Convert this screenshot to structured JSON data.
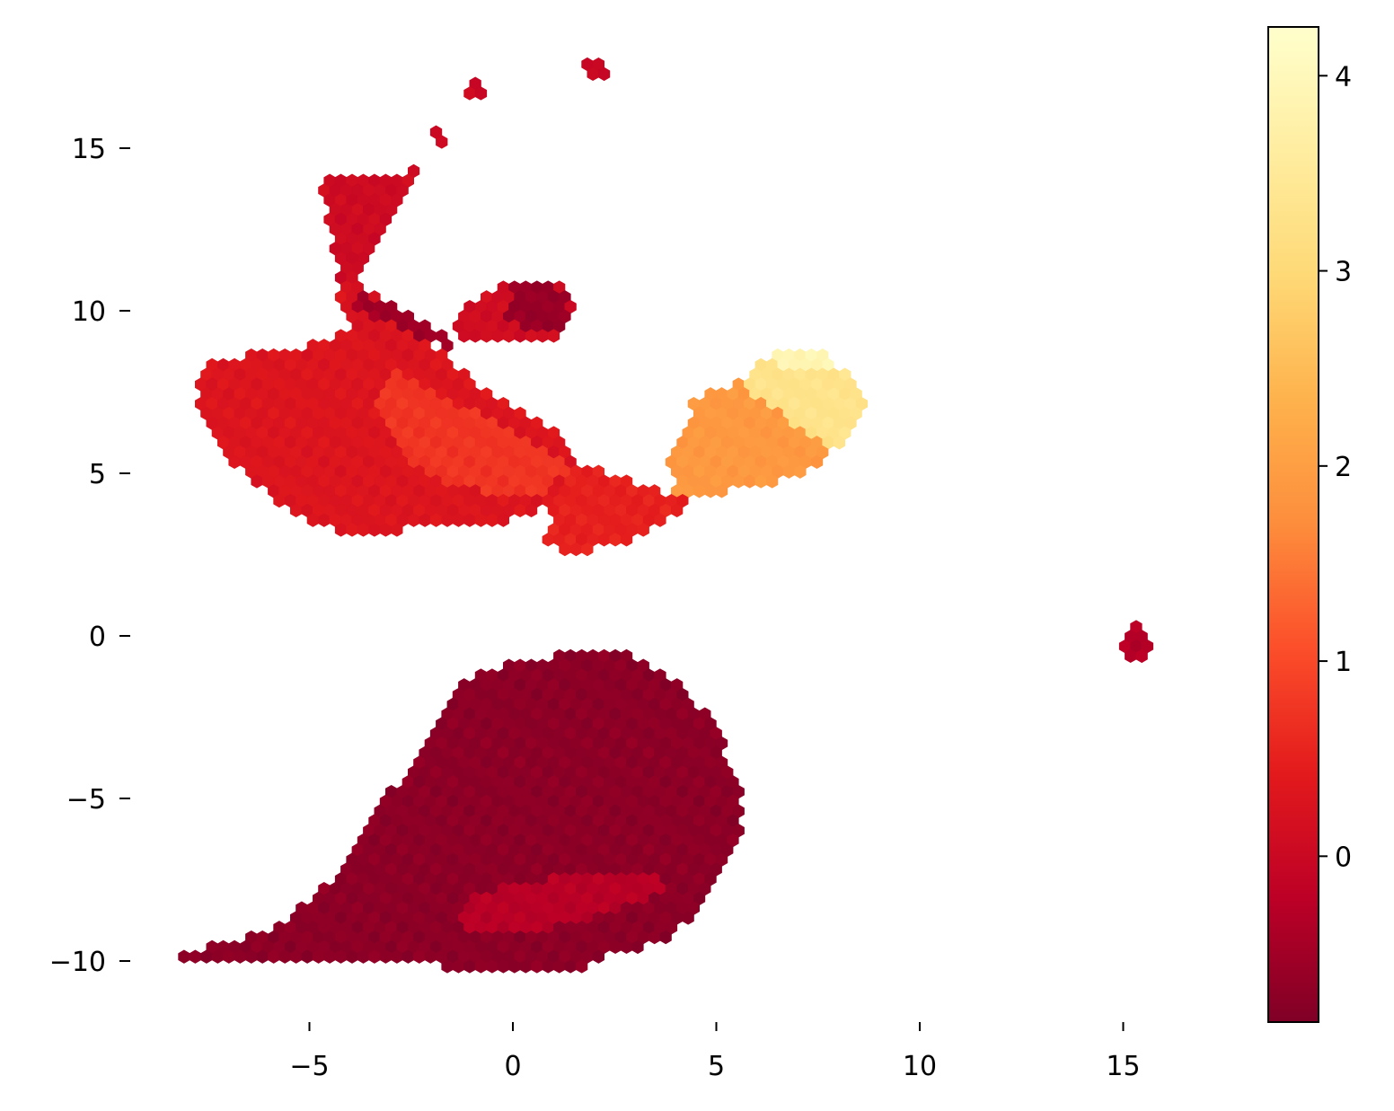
{
  "chart_data": {
    "type": "heatmap",
    "subtype": "hexbin",
    "title": "",
    "xlabel": "",
    "ylabel": "",
    "xlim": [
      -8.6,
      19.8
    ],
    "ylim": [
      -12.0,
      18.8
    ],
    "xticks": [
      {
        "value": -5,
        "label": "−5"
      },
      {
        "value": 0,
        "label": "0"
      },
      {
        "value": 5,
        "label": "5"
      },
      {
        "value": 10,
        "label": "10"
      },
      {
        "value": 15,
        "label": "15"
      }
    ],
    "yticks": [
      {
        "value": 15,
        "label": "15"
      },
      {
        "value": 10,
        "label": "10"
      },
      {
        "value": 5,
        "label": "5"
      },
      {
        "value": 0,
        "label": "0"
      },
      {
        "value": -5,
        "label": "−5"
      },
      {
        "value": -10,
        "label": "−10"
      }
    ],
    "grid": false,
    "spines": false,
    "colorbar": {
      "colormap": "YlOrRd_r",
      "range": [
        -0.85,
        4.25
      ],
      "ticks": [
        {
          "value": 0,
          "label": "0"
        },
        {
          "value": 1,
          "label": "1"
        },
        {
          "value": 2,
          "label": "2"
        },
        {
          "value": 3,
          "label": "3"
        },
        {
          "value": 4,
          "label": "4"
        }
      ],
      "colors": [
        "#800026",
        "#bd0026",
        "#e31a1c",
        "#fc4e2a",
        "#fd8d3c",
        "#feb24c",
        "#fed976",
        "#ffeda0",
        "#ffffcc"
      ]
    },
    "regions": [
      {
        "name": "top-left fan",
        "value": 0.3,
        "polygon": [
          [
            -7.6,
            8.5
          ],
          [
            -5.2,
            8.8
          ],
          [
            -3.5,
            9.6
          ],
          [
            -2.0,
            9.0
          ],
          [
            -1.0,
            7.8
          ],
          [
            0.5,
            6.8
          ],
          [
            1.5,
            5.8
          ],
          [
            1.8,
            4.8
          ],
          [
            0.2,
            3.6
          ],
          [
            -2.5,
            3.3
          ],
          [
            -4.2,
            3.1
          ],
          [
            -5.5,
            3.8
          ],
          [
            -6.8,
            5.2
          ],
          [
            -7.5,
            6.3
          ],
          [
            -7.8,
            7.5
          ]
        ]
      },
      {
        "name": "center blend",
        "value": 0.75,
        "polygon": [
          [
            -3.0,
            8.2
          ],
          [
            -1.5,
            7.2
          ],
          [
            0.2,
            6.2
          ],
          [
            1.5,
            5.2
          ],
          [
            0.6,
            4.2
          ],
          [
            -1.5,
            4.6
          ],
          [
            -2.8,
            5.6
          ],
          [
            -3.4,
            7.0
          ]
        ]
      },
      {
        "name": "neck",
        "value": 0.25,
        "polygon": [
          [
            -4.3,
            11.8
          ],
          [
            -3.8,
            11.0
          ],
          [
            -3.0,
            10.0
          ],
          [
            -2.0,
            8.6
          ],
          [
            -2.8,
            8.2
          ],
          [
            -3.9,
            9.3
          ],
          [
            -4.3,
            10.6
          ]
        ]
      },
      {
        "name": "funnel top",
        "value": 0.05,
        "polygon": [
          [
            -4.8,
            14.2
          ],
          [
            -2.4,
            14.3
          ],
          [
            -2.5,
            13.6
          ],
          [
            -3.4,
            12.2
          ],
          [
            -3.8,
            10.8
          ],
          [
            -4.3,
            10.8
          ],
          [
            -4.4,
            12.2
          ],
          [
            -4.6,
            13.2
          ]
        ]
      },
      {
        "name": "funnel dark strip",
        "value": -0.5,
        "polygon": [
          [
            -3.8,
            10.6
          ],
          [
            -2.6,
            10.0
          ],
          [
            -1.6,
            9.3
          ],
          [
            -1.6,
            8.9
          ],
          [
            -2.6,
            9.3
          ],
          [
            -3.9,
            10.1
          ]
        ]
      },
      {
        "name": "blob arm",
        "value": 0.1,
        "polygon": [
          [
            -1.4,
            10.0
          ],
          [
            -0.6,
            10.6
          ],
          [
            0.2,
            11.0
          ],
          [
            1.2,
            10.9
          ],
          [
            1.5,
            10.2
          ],
          [
            1.0,
            9.2
          ],
          [
            0.0,
            9.0
          ],
          [
            -1.0,
            9.0
          ],
          [
            -1.4,
            9.3
          ]
        ]
      },
      {
        "name": "blob dark core",
        "value": -0.6,
        "polygon": [
          [
            0.0,
            10.9
          ],
          [
            0.9,
            10.9
          ],
          [
            1.4,
            10.3
          ],
          [
            1.2,
            9.4
          ],
          [
            0.3,
            9.3
          ],
          [
            -0.2,
            9.8
          ]
        ]
      },
      {
        "name": "bridge",
        "value": 0.5,
        "polygon": [
          [
            1.5,
            5.4
          ],
          [
            3.5,
            4.5
          ],
          [
            4.5,
            4.0
          ],
          [
            3.6,
            3.4
          ],
          [
            2.5,
            2.8
          ],
          [
            1.5,
            2.5
          ],
          [
            0.8,
            3.0
          ],
          [
            1.0,
            4.3
          ]
        ]
      },
      {
        "name": "right arm orange",
        "value": 1.9,
        "polygon": [
          [
            3.8,
            5.4
          ],
          [
            4.2,
            6.4
          ],
          [
            4.5,
            7.4
          ],
          [
            5.8,
            7.9
          ],
          [
            6.4,
            8.5
          ],
          [
            7.4,
            8.8
          ],
          [
            8.3,
            7.6
          ],
          [
            8.3,
            6.2
          ],
          [
            7.6,
            5.3
          ],
          [
            6.2,
            4.6
          ],
          [
            5.0,
            4.4
          ],
          [
            4.0,
            4.2
          ]
        ]
      },
      {
        "name": "right arm light",
        "value": 3.3,
        "polygon": [
          [
            5.8,
            8.1
          ],
          [
            6.3,
            8.7
          ],
          [
            7.6,
            8.8
          ],
          [
            8.5,
            7.6
          ],
          [
            8.7,
            6.8
          ],
          [
            8.0,
            5.6
          ],
          [
            7.2,
            6.2
          ],
          [
            6.3,
            7.1
          ],
          [
            5.8,
            7.5
          ]
        ]
      },
      {
        "name": "right arm top",
        "value": 3.9,
        "polygon": [
          [
            6.3,
            8.7
          ],
          [
            7.6,
            8.8
          ],
          [
            7.8,
            8.2
          ],
          [
            6.7,
            8.1
          ]
        ]
      },
      {
        "name": "bottom mass",
        "value": -0.72,
        "polygon": [
          [
            -8.3,
            -9.8
          ],
          [
            -6.0,
            -9.1
          ],
          [
            -4.5,
            -7.6
          ],
          [
            -3.8,
            -6.3
          ],
          [
            -3.0,
            -4.8
          ],
          [
            -2.2,
            -3.3
          ],
          [
            -1.6,
            -1.8
          ],
          [
            -0.5,
            -1.0
          ],
          [
            1.0,
            -0.6
          ],
          [
            3.0,
            -0.6
          ],
          [
            4.2,
            -1.6
          ],
          [
            5.0,
            -2.8
          ],
          [
            5.6,
            -4.6
          ],
          [
            5.6,
            -6.4
          ],
          [
            4.8,
            -8.2
          ],
          [
            3.8,
            -9.3
          ],
          [
            2.5,
            -9.8
          ],
          [
            1.2,
            -10.4
          ],
          [
            -0.8,
            -10.4
          ],
          [
            -2.6,
            -10.0
          ],
          [
            -5.5,
            -10.0
          ],
          [
            -8.3,
            -10.0
          ]
        ]
      },
      {
        "name": "bottom red streak",
        "value": -0.25,
        "polygon": [
          [
            -1.3,
            -8.2
          ],
          [
            0.0,
            -7.6
          ],
          [
            1.6,
            -7.4
          ],
          [
            3.2,
            -7.3
          ],
          [
            4.0,
            -7.6
          ],
          [
            3.2,
            -8.2
          ],
          [
            1.8,
            -8.8
          ],
          [
            0.2,
            -9.2
          ],
          [
            -1.2,
            -9.0
          ]
        ]
      },
      {
        "name": "island right",
        "value": -0.3,
        "polygon": [
          [
            15.0,
            0.0
          ],
          [
            15.3,
            0.4
          ],
          [
            15.7,
            0.1
          ],
          [
            15.8,
            -0.3
          ],
          [
            15.6,
            -0.7
          ],
          [
            15.2,
            -0.7
          ],
          [
            15.0,
            -0.4
          ]
        ]
      },
      {
        "name": "dot",
        "value": 0.0,
        "polygon": [
          [
            -1.9,
            15.6
          ],
          [
            -1.7,
            15.6
          ],
          [
            -1.6,
            15.3
          ],
          [
            -1.8,
            15.0
          ],
          [
            -2.0,
            15.3
          ]
        ]
      },
      {
        "name": "dot",
        "value": 0.0,
        "polygon": [
          [
            -1.0,
            17.0
          ],
          [
            -0.7,
            17.0
          ],
          [
            -0.6,
            16.6
          ],
          [
            -0.8,
            16.4
          ],
          [
            -1.1,
            16.6
          ]
        ]
      },
      {
        "name": "dot",
        "value": 0.0,
        "polygon": [
          [
            1.8,
            17.6
          ],
          [
            2.2,
            17.6
          ],
          [
            2.3,
            17.2
          ],
          [
            2.0,
            16.9
          ],
          [
            1.8,
            17.1
          ]
        ]
      }
    ]
  }
}
